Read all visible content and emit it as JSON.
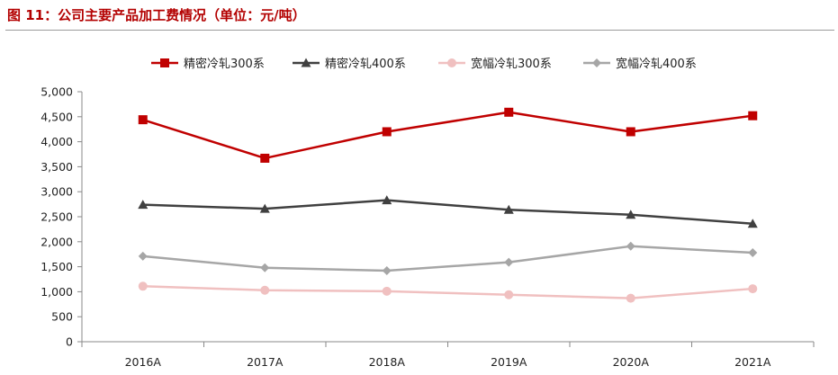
{
  "header": {
    "title": "图 11：公司主要产品加工费情况（单位：元/吨）"
  },
  "chart_data": {
    "type": "line",
    "title": "图 11：公司主要产品加工费情况（单位：元/吨）",
    "xlabel": "",
    "ylabel": "",
    "categories": [
      "2016A",
      "2017A",
      "2018A",
      "2019A",
      "2020A",
      "2021A"
    ],
    "ylim": [
      0,
      5000
    ],
    "yticks": [
      0,
      500,
      1000,
      1500,
      2000,
      2500,
      3000,
      3500,
      4000,
      4500,
      5000
    ],
    "ytick_labels": [
      "0",
      "500",
      "1,000",
      "1,500",
      "2,000",
      "2,500",
      "3,000",
      "3,500",
      "4,000",
      "4,500",
      "5,000"
    ],
    "grid": false,
    "legend_position": "top",
    "series": [
      {
        "name": "精密冷轧300系",
        "values": [
          4440,
          3670,
          4200,
          4590,
          4200,
          4520
        ],
        "color": "#c00000",
        "marker": "square"
      },
      {
        "name": "精密冷轧400系",
        "values": [
          2740,
          2660,
          2830,
          2640,
          2540,
          2360
        ],
        "color": "#404040",
        "marker": "triangle"
      },
      {
        "name": "宽幅冷轧300系",
        "values": [
          1110,
          1030,
          1010,
          940,
          870,
          1060
        ],
        "color": "#f0c0c0",
        "marker": "circle"
      },
      {
        "name": "宽幅冷轧400系",
        "values": [
          1710,
          1480,
          1420,
          1590,
          1910,
          1780
        ],
        "color": "#a6a6a6",
        "marker": "diamond"
      }
    ]
  }
}
